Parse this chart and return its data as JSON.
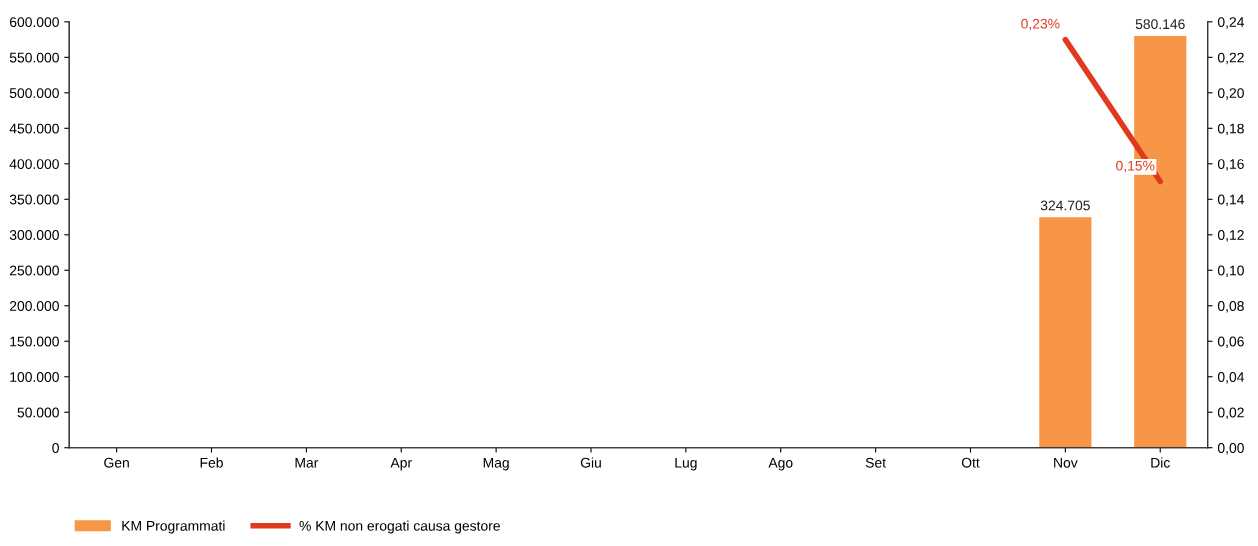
{
  "chart_data": {
    "type": "bar",
    "categories": [
      "Gen",
      "Feb",
      "Mar",
      "Apr",
      "Mag",
      "Giu",
      "Lug",
      "Ago",
      "Set",
      "Ott",
      "Nov",
      "Dic"
    ],
    "series": [
      {
        "name": "KM Programmati",
        "color": "#f79646",
        "values": [
          null,
          null,
          null,
          null,
          null,
          null,
          null,
          null,
          null,
          null,
          324705,
          580146
        ],
        "value_labels": [
          null,
          null,
          null,
          null,
          null,
          null,
          null,
          null,
          null,
          null,
          "324.705",
          "580.146"
        ]
      },
      {
        "name": "% KM non erogati causa gestore",
        "type": "line",
        "axis": "y2",
        "color": "#e03a1e",
        "values": [
          null,
          null,
          null,
          null,
          null,
          null,
          null,
          null,
          null,
          null,
          0.23,
          0.15
        ],
        "value_labels": [
          null,
          null,
          null,
          null,
          null,
          null,
          null,
          null,
          null,
          null,
          "0,23%",
          "0,15%"
        ]
      }
    ],
    "ylim": [
      0,
      600000
    ],
    "yticks": [
      {
        "value": 0,
        "label": "0"
      },
      {
        "value": 50000,
        "label": "50.000"
      },
      {
        "value": 100000,
        "label": "100.000"
      },
      {
        "value": 150000,
        "label": "150.000"
      },
      {
        "value": 200000,
        "label": "200.000"
      },
      {
        "value": 250000,
        "label": "250.000"
      },
      {
        "value": 300000,
        "label": "300.000"
      },
      {
        "value": 350000,
        "label": "350.000"
      },
      {
        "value": 400000,
        "label": "400.000"
      },
      {
        "value": 450000,
        "label": "450.000"
      },
      {
        "value": 500000,
        "label": "500.000"
      },
      {
        "value": 550000,
        "label": "550.000"
      },
      {
        "value": 600000,
        "label": "600.000"
      }
    ],
    "y2lim": [
      0,
      0.24
    ],
    "y2ticks": [
      {
        "value": 0,
        "label": "0,00"
      },
      {
        "value": 0.02,
        "label": "0,02"
      },
      {
        "value": 0.04,
        "label": "0,04"
      },
      {
        "value": 0.06,
        "label": "0,06"
      },
      {
        "value": 0.08,
        "label": "0,08"
      },
      {
        "value": 0.1,
        "label": "0,10"
      },
      {
        "value": 0.12,
        "label": "0,12"
      },
      {
        "value": 0.14,
        "label": "0,14"
      },
      {
        "value": 0.16,
        "label": "0,16"
      },
      {
        "value": 0.18,
        "label": "0,18"
      },
      {
        "value": 0.2,
        "label": "0,20"
      },
      {
        "value": 0.22,
        "label": "0,22"
      },
      {
        "value": 0.24,
        "label": "0,24"
      }
    ],
    "grid": false,
    "legend": "bottom left",
    "line_style": "solid",
    "marker": "none"
  }
}
